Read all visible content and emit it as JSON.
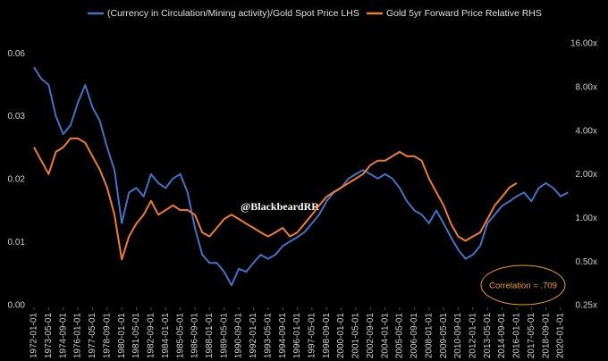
{
  "chart_data": {
    "type": "line",
    "x": [
      "1972-01",
      "1972-09",
      "1973-05",
      "1974-01",
      "1974-09",
      "1975-05",
      "1976-01",
      "1976-09",
      "1977-05",
      "1978-01",
      "1978-09",
      "1979-05",
      "1980-01",
      "1980-09",
      "1981-05",
      "1982-01",
      "1982-09",
      "1983-05",
      "1984-01",
      "1984-09",
      "1985-05",
      "1986-01",
      "1986-09",
      "1987-05",
      "1988-01",
      "1988-09",
      "1989-05",
      "1990-01",
      "1990-09",
      "1991-05",
      "1992-01",
      "1992-09",
      "1993-05",
      "1994-01",
      "1994-09",
      "1995-05",
      "1996-01",
      "1996-09",
      "1997-05",
      "1998-01",
      "1998-09",
      "1999-05",
      "2000-01",
      "2000-09",
      "2001-05",
      "2002-01",
      "2002-09",
      "2003-05",
      "2004-01",
      "2004-09",
      "2005-05",
      "2006-01",
      "2006-09",
      "2007-05",
      "2008-01",
      "2008-09",
      "2009-05",
      "2010-01",
      "2010-09",
      "2011-05",
      "2012-01",
      "2012-09",
      "2013-05",
      "2014-01",
      "2014-09",
      "2015-05",
      "2016-01",
      "2016-09",
      "2017-05",
      "2018-01",
      "2018-09",
      "2019-05",
      "2020-01",
      "2020-09"
    ],
    "series": [
      {
        "name": "(Currency in Circulation/Mining activity)/Gold Spot Price LHS",
        "color": "#4472c4",
        "axis": "y",
        "values": [
          0.0552,
          0.0486,
          0.0454,
          0.0322,
          0.0264,
          0.0291,
          0.0373,
          0.0454,
          0.0355,
          0.0306,
          0.0228,
          0.0178,
          0.0099,
          0.0139,
          0.0146,
          0.0133,
          0.017,
          0.0154,
          0.0146,
          0.0162,
          0.017,
          0.0139,
          0.0094,
          0.007,
          0.0064,
          0.0064,
          0.0058,
          0.005,
          0.006,
          0.0058,
          0.0064,
          0.007,
          0.0067,
          0.007,
          0.0077,
          0.0081,
          0.0085,
          0.009,
          0.0099,
          0.0109,
          0.0126,
          0.0139,
          0.0146,
          0.0162,
          0.017,
          0.0178,
          0.017,
          0.0162,
          0.017,
          0.0162,
          0.0146,
          0.0126,
          0.0114,
          0.0109,
          0.0099,
          0.0114,
          0.0099,
          0.0085,
          0.0074,
          0.0067,
          0.007,
          0.0077,
          0.0099,
          0.0109,
          0.012,
          0.0126,
          0.0133,
          0.0139,
          0.0126,
          0.0146,
          0.0154,
          0.0146,
          0.0133,
          0.0139
        ]
      },
      {
        "name": "Gold 5yr Forward Price Relative RHS",
        "color": "#ed7d31",
        "axis": "y2",
        "values": [
          3.09,
          2.5,
          2.02,
          2.88,
          3.09,
          3.56,
          3.56,
          3.32,
          2.68,
          2.17,
          1.63,
          1.06,
          0.52,
          0.75,
          0.92,
          1.06,
          1.32,
          1.06,
          1.14,
          1.23,
          1.14,
          1.14,
          1.06,
          0.8,
          0.75,
          0.86,
          0.99,
          1.06,
          0.99,
          0.92,
          0.86,
          0.8,
          0.75,
          0.8,
          0.86,
          0.75,
          0.8,
          0.92,
          1.06,
          1.23,
          1.41,
          1.52,
          1.63,
          1.75,
          1.88,
          2.02,
          2.33,
          2.5,
          2.5,
          2.68,
          2.88,
          2.68,
          2.68,
          2.5,
          1.88,
          1.52,
          1.23,
          0.92,
          0.75,
          0.7,
          0.75,
          0.8,
          0.99,
          1.23,
          1.41,
          1.63,
          1.75,
          null,
          null,
          null,
          null,
          null,
          null,
          null
        ]
      }
    ],
    "xticks": [
      "1972-01-01",
      "1973-05-01",
      "1974-09-01",
      "1976-01-01",
      "1977-05-01",
      "1978-09-01",
      "1980-01-01",
      "1981-05-01",
      "1982-09-01",
      "1984-01-01",
      "1985-05-01",
      "1986-09-01",
      "1988-01-01",
      "1989-05-01",
      "1990-09-01",
      "1992-01-01",
      "1993-05-01",
      "1994-09-01",
      "1996-01-01",
      "1997-05-01",
      "1998-09-01",
      "2000-01-01",
      "2001-05-01",
      "2002-09-01",
      "2004-01-01",
      "2005-05-01",
      "2006-09-01",
      "2008-01-01",
      "2009-05-01",
      "2010-09-01",
      "2012-01-01",
      "2013-05-01",
      "2014-09-01",
      "2016-01-01",
      "2017-05-01",
      "2018-09-01",
      "2020-01-01"
    ],
    "ylim": [
      0.004,
      0.078
    ],
    "log_y": true,
    "yticks": [
      {
        "value": 0.004,
        "label": "0.00"
      },
      {
        "value": 0.008,
        "label": "0.01"
      },
      {
        "value": 0.016,
        "label": "0.02"
      },
      {
        "value": 0.032,
        "label": "0.03"
      },
      {
        "value": 0.064,
        "label": "0.06"
      }
    ],
    "y2lim": [
      0.25,
      18.2
    ],
    "log_y2": true,
    "y2ticks": [
      {
        "value": 0.25,
        "label": "0.25x"
      },
      {
        "value": 0.5,
        "label": "0.50x"
      },
      {
        "value": 1,
        "label": "1.00x"
      },
      {
        "value": 2,
        "label": "2.00x"
      },
      {
        "value": 4,
        "label": "4.00x"
      },
      {
        "value": 8,
        "label": "8.00x"
      },
      {
        "value": 16,
        "label": "16.00x"
      }
    ],
    "legend": "top",
    "annotations": [
      "@BlackbeardRR",
      "Correlation = .709"
    ]
  }
}
